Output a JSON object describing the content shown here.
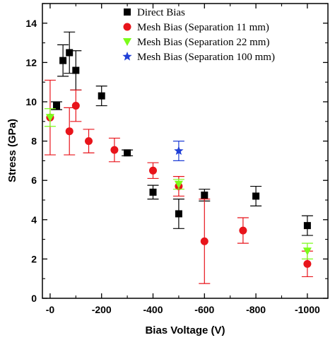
{
  "chart_data": {
    "type": "scatter",
    "xlabel": "Bias Voltage (V)",
    "ylabel": "Stress (GPa)",
    "xlim": [
      30,
      -1080
    ],
    "ylim": [
      0,
      15
    ],
    "x_ticks": [
      0,
      -200,
      -400,
      -600,
      -800,
      -1000
    ],
    "x_tick_labels": [
      "-0",
      "-200",
      "-400",
      "-600",
      "-800",
      "-1000"
    ],
    "y_ticks": [
      0,
      2,
      4,
      6,
      8,
      10,
      12,
      14
    ],
    "y_tick_labels": [
      "0",
      "2",
      "4",
      "6",
      "8",
      "10",
      "12",
      "14"
    ],
    "legend_position": "top-right",
    "series": [
      {
        "name": "Direct Bias",
        "marker": "square",
        "color": "#000000",
        "points": [
          {
            "x": -25,
            "y": 9.8,
            "err": 0.2
          },
          {
            "x": -50,
            "y": 12.1,
            "err": 0.8
          },
          {
            "x": -75,
            "y": 12.5,
            "err": 1.05
          },
          {
            "x": -100,
            "y": 11.6,
            "err": 1.0
          },
          {
            "x": -200,
            "y": 10.3,
            "err": 0.5
          },
          {
            "x": -300,
            "y": 7.4,
            "err": 0.15
          },
          {
            "x": -400,
            "y": 5.4,
            "err": 0.35
          },
          {
            "x": -500,
            "y": 4.3,
            "err": 0.75
          },
          {
            "x": -600,
            "y": 5.25,
            "err": 0.3
          },
          {
            "x": -800,
            "y": 5.2,
            "err": 0.5
          },
          {
            "x": -1000,
            "y": 3.7,
            "err": 0.5
          }
        ]
      },
      {
        "name": "Mesh Bias (Separation 11 mm)",
        "marker": "circle",
        "color": "#e8141b",
        "points": [
          {
            "x": 0,
            "y": 9.2,
            "err": 1.9
          },
          {
            "x": -75,
            "y": 8.5,
            "err": 1.2
          },
          {
            "x": -100,
            "y": 9.8,
            "err": 0.8
          },
          {
            "x": -150,
            "y": 8.0,
            "err": 0.6
          },
          {
            "x": -250,
            "y": 7.55,
            "err": 0.6
          },
          {
            "x": -400,
            "y": 6.5,
            "err": 0.4
          },
          {
            "x": -500,
            "y": 5.7,
            "err": 0.5
          },
          {
            "x": -600,
            "y": 2.9,
            "err": 2.15
          },
          {
            "x": -750,
            "y": 3.45,
            "err": 0.65
          },
          {
            "x": -1000,
            "y": 1.75,
            "err": 0.65
          }
        ]
      },
      {
        "name": "Mesh Bias (Separation 22 mm)",
        "marker": "triangle-down",
        "color": "#7cfc1a",
        "points": [
          {
            "x": 0,
            "y": 9.2,
            "err": 0.45
          },
          {
            "x": -500,
            "y": 5.8,
            "err": 0.25
          },
          {
            "x": -1000,
            "y": 2.4,
            "err": 0.4
          }
        ]
      },
      {
        "name": "Mesh Bias (Separation 100 mm)",
        "marker": "star",
        "color": "#1f3fd6",
        "points": [
          {
            "x": -500,
            "y": 7.5,
            "err": 0.5
          }
        ]
      }
    ]
  }
}
